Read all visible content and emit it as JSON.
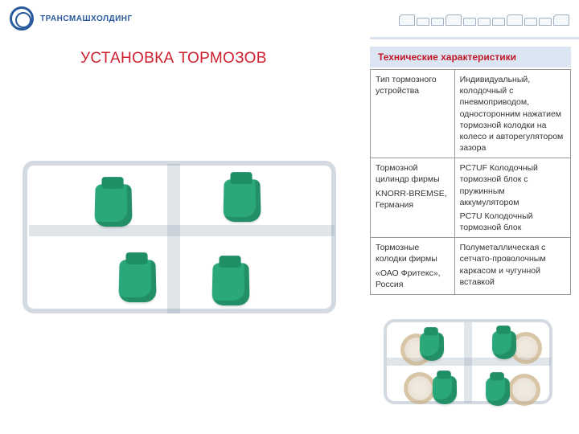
{
  "header": {
    "company": "ТРАНСМАШХОЛДИНГ",
    "logo_color": "#2a5a9e"
  },
  "title": "УСТАНОВКА ТОРМОЗОВ",
  "title_color": "#d02030",
  "spec": {
    "heading": "Технические характеристики",
    "heading_bg": "#dbe6f2",
    "heading_color": "#c01828",
    "border_color": "#999999",
    "font_size": 10.5,
    "rows": [
      {
        "label_lines": [
          "Тип тормозного устройства"
        ],
        "value_lines": [
          "Индивидуальный, колодочный с пневмоприводом, односторонним нажатием тормозной колодки на колесо и авторегулятором зазора"
        ]
      },
      {
        "label_lines": [
          "Тормозной цилиндр фирмы",
          "KNORR-BREMSE, Германия"
        ],
        "value_lines": [
          "PC7UF  Колодочный тормозной блок с пружинным аккумулятором",
          "PC7U Колодочный тормозной блок"
        ]
      },
      {
        "label_lines": [
          "Тормозные колодки фирмы",
          "«ОАО Фритекс», Россия"
        ],
        "value_lines": [
          "Полуметаллическая с сетчато-проволочным каркасом и чугунной вставкой"
        ]
      }
    ]
  },
  "render": {
    "brake_color": "#2aa87a",
    "frame_color": "rgba(130,150,170,0.35)"
  }
}
